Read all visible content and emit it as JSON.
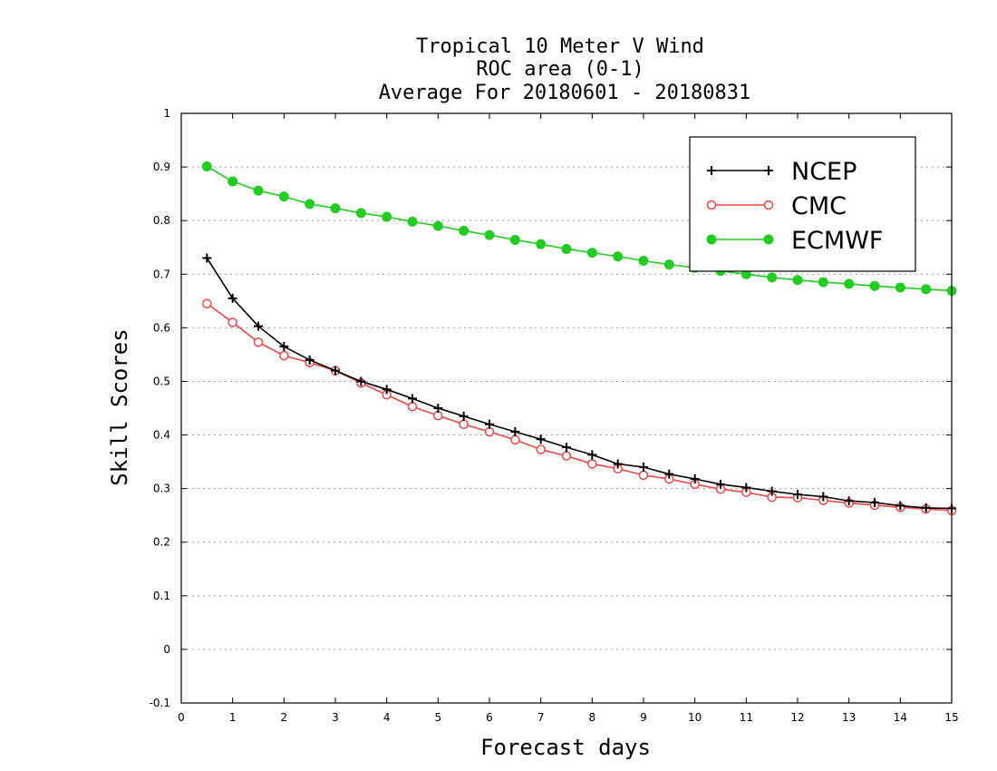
{
  "chart_data": {
    "type": "line",
    "title_lines": [
      "Tropical 10 Meter V Wind",
      "ROC area (0-1)",
      "Average For 20180601 - 20180831"
    ],
    "xlabel": "Forecast days",
    "ylabel": "Skill Scores",
    "xlim": [
      0,
      15
    ],
    "ylim": [
      -0.1,
      1
    ],
    "xticks": [
      0,
      1,
      2,
      3,
      4,
      5,
      6,
      7,
      8,
      9,
      10,
      11,
      12,
      13,
      14,
      15
    ],
    "xtick_labels": [
      "0",
      "1",
      "2",
      "3",
      "4",
      "5",
      "6",
      "7",
      "8",
      "9",
      "10",
      "11",
      "12",
      "13",
      "14",
      "15"
    ],
    "yticks": [
      -0.1,
      0,
      0.1,
      0.2,
      0.3,
      0.4,
      0.5,
      0.6,
      0.7,
      0.8,
      0.9,
      1
    ],
    "ytick_labels": [
      "-0.1",
      "0",
      "0.1",
      "0.2",
      "0.3",
      "0.4",
      "0.5",
      "0.6",
      "0.7",
      "0.8",
      "0.9",
      "1"
    ],
    "grid": "horizontal dotted",
    "legend_position": "top-right",
    "x": [
      0.5,
      1,
      1.5,
      2,
      2.5,
      3,
      3.5,
      4,
      4.5,
      5,
      5.5,
      6,
      6.5,
      7,
      7.5,
      8,
      8.5,
      9,
      9.5,
      10,
      10.5,
      11,
      11.5,
      12,
      12.5,
      13,
      13.5,
      14,
      14.5,
      15
    ],
    "series": [
      {
        "name": "NCEP",
        "color": "#000000",
        "marker": "plus",
        "values": [
          0.73,
          0.655,
          0.603,
          0.565,
          0.54,
          0.52,
          0.5,
          0.485,
          0.468,
          0.45,
          0.435,
          0.42,
          0.406,
          0.392,
          0.377,
          0.363,
          0.346,
          0.34,
          0.327,
          0.318,
          0.308,
          0.302,
          0.295,
          0.289,
          0.285,
          0.277,
          0.274,
          0.268,
          0.264,
          0.263
        ]
      },
      {
        "name": "CMC",
        "color": "#ef4747",
        "marker": "open-circle",
        "values": [
          0.645,
          0.61,
          0.573,
          0.548,
          0.535,
          0.52,
          0.497,
          0.475,
          0.453,
          0.436,
          0.42,
          0.406,
          0.391,
          0.373,
          0.361,
          0.346,
          0.337,
          0.325,
          0.318,
          0.308,
          0.299,
          0.293,
          0.284,
          0.283,
          0.278,
          0.273,
          0.269,
          0.265,
          0.262,
          0.259
        ]
      },
      {
        "name": "ECMWF",
        "color": "#22cc22",
        "marker": "filled-circle",
        "values": [
          0.901,
          0.873,
          0.856,
          0.845,
          0.831,
          0.823,
          0.814,
          0.807,
          0.798,
          0.79,
          0.781,
          0.773,
          0.764,
          0.756,
          0.747,
          0.74,
          0.733,
          0.725,
          0.718,
          0.712,
          0.706,
          0.7,
          0.694,
          0.689,
          0.685,
          0.682,
          0.678,
          0.675,
          0.672,
          0.669
        ]
      }
    ]
  }
}
